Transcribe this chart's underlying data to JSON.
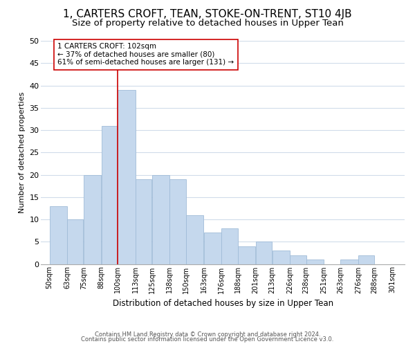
{
  "title": "1, CARTERS CROFT, TEAN, STOKE-ON-TRENT, ST10 4JB",
  "subtitle": "Size of property relative to detached houses in Upper Tean",
  "xlabel": "Distribution of detached houses by size in Upper Tean",
  "ylabel": "Number of detached properties",
  "bar_labels": [
    "50sqm",
    "63sqm",
    "75sqm",
    "88sqm",
    "100sqm",
    "113sqm",
    "125sqm",
    "138sqm",
    "150sqm",
    "163sqm",
    "176sqm",
    "188sqm",
    "201sqm",
    "213sqm",
    "226sqm",
    "238sqm",
    "251sqm",
    "263sqm",
    "276sqm",
    "288sqm",
    "301sqm"
  ],
  "bar_values": [
    13,
    10,
    20,
    31,
    39,
    19,
    20,
    19,
    11,
    7,
    8,
    4,
    5,
    3,
    2,
    1,
    0,
    1,
    2,
    0
  ],
  "bar_color": "#c5d8ed",
  "bar_edge_color": "#a0bcd8",
  "highlight_line_color": "#cc0000",
  "annotation_box_text": "1 CARTERS CROFT: 102sqm\n← 37% of detached houses are smaller (80)\n61% of semi-detached houses are larger (131) →",
  "annotation_box_color": "#ffffff",
  "annotation_box_edge_color": "#cc0000",
  "ylim": [
    0,
    50
  ],
  "yticks": [
    0,
    5,
    10,
    15,
    20,
    25,
    30,
    35,
    40,
    45,
    50
  ],
  "footer_line1": "Contains HM Land Registry data © Crown copyright and database right 2024.",
  "footer_line2": "Contains public sector information licensed under the Open Government Licence v3.0.",
  "background_color": "#ffffff",
  "grid_color": "#d0dcea",
  "title_fontsize": 11,
  "subtitle_fontsize": 9.5
}
